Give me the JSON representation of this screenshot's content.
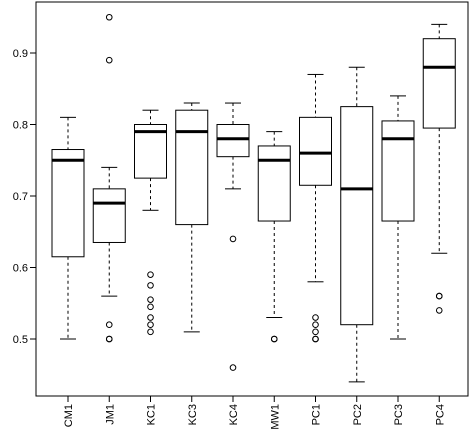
{
  "chart_data": {
    "type": "box",
    "title": "",
    "xlabel": "",
    "ylabel": "",
    "ylim": [
      0.44,
      0.96
    ],
    "yticks": [
      0.5,
      0.6,
      0.7,
      0.8,
      0.9
    ],
    "ytick_labels": [
      "0.5",
      "0.6",
      "0.7",
      "0.8",
      "0.9"
    ],
    "grid": false,
    "categories": [
      "CM1",
      "JM1",
      "KC1",
      "KC3",
      "KC4",
      "MW1",
      "PC1",
      "PC2",
      "PC3",
      "PC4"
    ],
    "boxes": [
      {
        "label": "CM1",
        "whisker_low": 0.5,
        "q1": 0.615,
        "median": 0.75,
        "q3": 0.765,
        "whisker_high": 0.81,
        "outliers": []
      },
      {
        "label": "JM1",
        "whisker_low": 0.56,
        "q1": 0.635,
        "median": 0.69,
        "q3": 0.71,
        "whisker_high": 0.74,
        "outliers": [
          0.95,
          0.89,
          0.52,
          0.5,
          0.5
        ]
      },
      {
        "label": "KC1",
        "whisker_low": 0.68,
        "q1": 0.725,
        "median": 0.79,
        "q3": 0.8,
        "whisker_high": 0.82,
        "outliers": [
          0.59,
          0.575,
          0.555,
          0.545,
          0.53,
          0.52,
          0.51
        ]
      },
      {
        "label": "KC3",
        "whisker_low": 0.51,
        "q1": 0.66,
        "median": 0.79,
        "q3": 0.82,
        "whisker_high": 0.83,
        "outliers": []
      },
      {
        "label": "KC4",
        "whisker_low": 0.71,
        "q1": 0.755,
        "median": 0.78,
        "q3": 0.8,
        "whisker_high": 0.83,
        "outliers": [
          0.64,
          0.46
        ]
      },
      {
        "label": "MW1",
        "whisker_low": 0.53,
        "q1": 0.665,
        "median": 0.75,
        "q3": 0.77,
        "whisker_high": 0.79,
        "outliers": [
          0.5,
          0.5
        ]
      },
      {
        "label": "PC1",
        "whisker_low": 0.58,
        "q1": 0.715,
        "median": 0.76,
        "q3": 0.81,
        "whisker_high": 0.87,
        "outliers": [
          0.53,
          0.52,
          0.51,
          0.5,
          0.5
        ]
      },
      {
        "label": "PC2",
        "whisker_low": 0.44,
        "q1": 0.52,
        "median": 0.71,
        "q3": 0.825,
        "whisker_high": 0.88,
        "outliers": []
      },
      {
        "label": "PC3",
        "whisker_low": 0.5,
        "q1": 0.665,
        "median": 0.78,
        "q3": 0.805,
        "whisker_high": 0.84,
        "outliers": []
      },
      {
        "label": "PC4",
        "whisker_low": 0.62,
        "q1": 0.795,
        "median": 0.88,
        "q3": 0.92,
        "whisker_high": 0.94,
        "outliers": [
          0.56,
          0.56,
          0.54
        ]
      }
    ]
  }
}
